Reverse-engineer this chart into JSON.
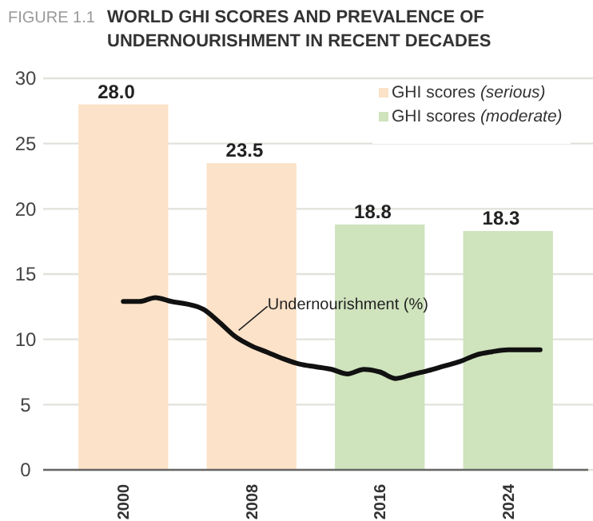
{
  "chart_data": {
    "type": "bar",
    "title": "WORLD GHI SCORES AND PREVALENCE OF UNDERNOURISHMENT IN RECENT DECADES",
    "annotations": [
      "FIGURE 1.1"
    ],
    "x": [
      2000,
      2008,
      2016,
      2024
    ],
    "xlim": [
      1995,
      2029
    ],
    "xticks": [
      2000,
      2008,
      2016,
      2024
    ],
    "ylim": [
      0,
      30
    ],
    "yticks": [
      0,
      5,
      10,
      15,
      20,
      25,
      30
    ],
    "grid": "y",
    "legend": "top right",
    "series": [
      {
        "name": "GHI scores (serious)",
        "color": "#fbe2c8",
        "values": [
          28.0,
          23.5,
          null,
          null
        ],
        "value_labels": [
          "28.0",
          "23.5",
          null,
          null
        ]
      },
      {
        "name": "GHI scores (moderate)",
        "color": "#cfe3bd",
        "values": [
          null,
          null,
          18.8,
          18.3
        ],
        "value_labels": [
          null,
          null,
          "18.8",
          "18.3"
        ]
      },
      {
        "type": "line",
        "name": "Undernourishment (%)",
        "color": "#111111",
        "x": [
          2000,
          2001,
          2002,
          2003,
          2004,
          2005,
          2006,
          2007,
          2008,
          2009,
          2010,
          2011,
          2012,
          2013,
          2014,
          2015,
          2016,
          2017,
          2018,
          2019,
          2020,
          2021,
          2022,
          2023,
          2024,
          2026
        ],
        "values": [
          12.9,
          12.9,
          13.2,
          12.9,
          12.7,
          12.3,
          11.3,
          10.2,
          9.5,
          9.0,
          8.5,
          8.1,
          7.9,
          7.7,
          7.35,
          7.7,
          7.5,
          7.0,
          7.3,
          7.6,
          7.95,
          8.3,
          8.8,
          9.05,
          9.2,
          9.2
        ]
      }
    ]
  }
}
